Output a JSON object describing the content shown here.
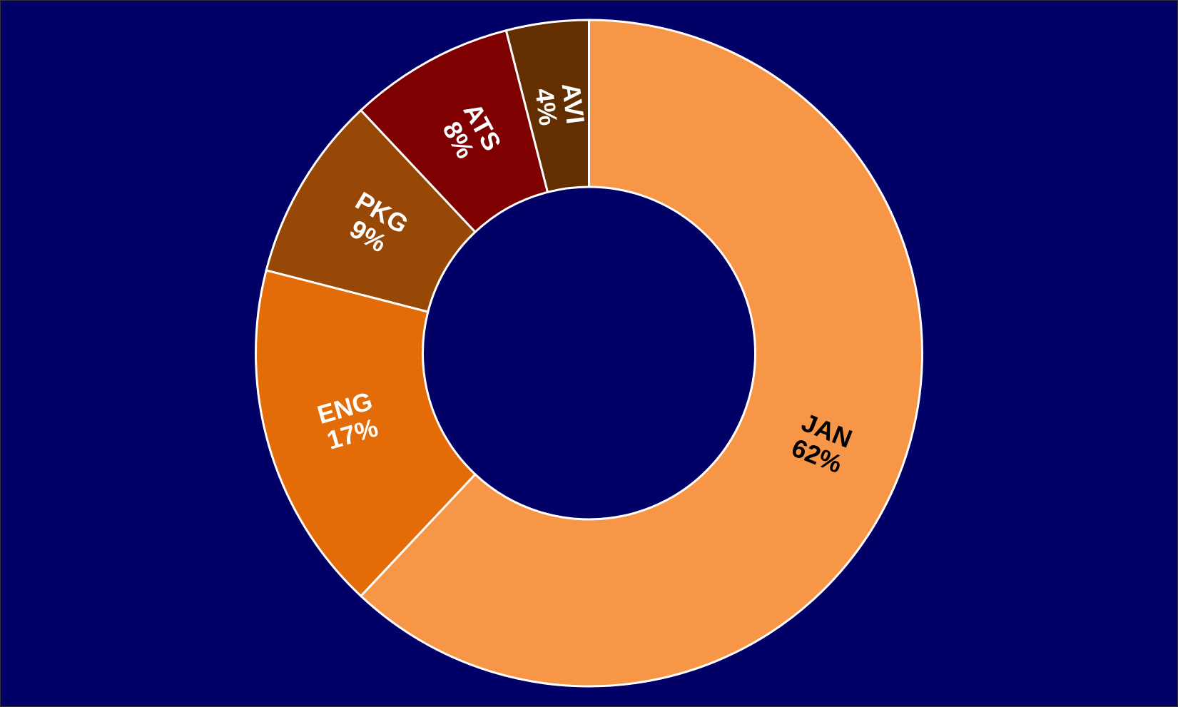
{
  "chart_data": {
    "type": "doughnut",
    "categories": [
      "JAN",
      "ENG",
      "PKG",
      "ATS",
      "AVI"
    ],
    "values": [
      62,
      17,
      9,
      8,
      4
    ],
    "value_labels": [
      "62%",
      "17%",
      "9%",
      "8%",
      "4%"
    ],
    "colors": [
      "#f79646",
      "#e36c09",
      "#974806",
      "#7f0000",
      "#632f00"
    ],
    "label_colors": [
      "#000000",
      "#ffffff",
      "#ffffff",
      "#ffffff",
      "#ffffff"
    ],
    "background": "#000066"
  }
}
